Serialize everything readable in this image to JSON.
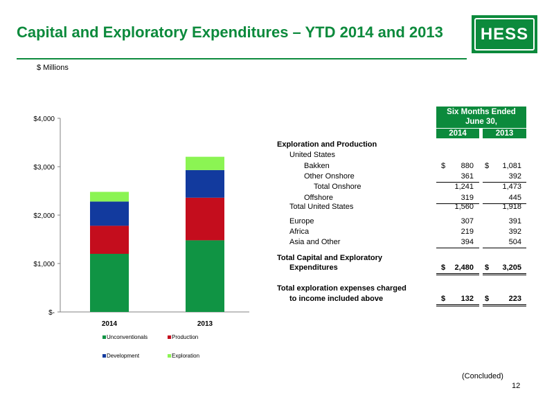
{
  "header": {
    "title": "Capital and Exploratory Expenditures – YTD 2014 and 2013",
    "logo_text": "HESS",
    "subtitle": "$ Millions"
  },
  "colors": {
    "brand_green": "#0c8a3c",
    "unconventionals": "#109444",
    "production": "#c40d1d",
    "development": "#123a9e",
    "exploration": "#8bf453"
  },
  "chart_data": {
    "type": "bar",
    "stacked": true,
    "categories": [
      "2014",
      "2013"
    ],
    "series": [
      {
        "name": "Unconventionals",
        "values": [
          1200,
          1480
        ]
      },
      {
        "name": "Production",
        "values": [
          580,
          880
        ]
      },
      {
        "name": "Development",
        "values": [
          500,
          570
        ]
      },
      {
        "name": "Exploration",
        "values": [
          200,
          275
        ]
      }
    ],
    "ylim": [
      0,
      4000
    ],
    "yticks": [
      0,
      1000,
      2000,
      3000,
      4000
    ],
    "ytick_labels": [
      "$-",
      "$1,000",
      "$2,000",
      "$3,000",
      "$4,000"
    ],
    "legend_position": "bottom",
    "grid": false
  },
  "table": {
    "period_header_line1": "Six Months Ended",
    "period_header_line2": "June 30,",
    "year1": "2014",
    "year2": "2013",
    "rows": [
      {
        "label": "Exploration and Production",
        "indent": 0,
        "bold": true
      },
      {
        "label": "United States",
        "indent": 1
      },
      {
        "label": "Bakken",
        "indent": 2,
        "cur1": "$",
        "v1": "880",
        "cur2": "$",
        "v2": "1,081"
      },
      {
        "label": "Other Onshore",
        "indent": 2,
        "v1": "361",
        "v2": "392",
        "underline": true
      },
      {
        "label": "Total Onshore",
        "indent": 3,
        "v1": "1,241",
        "v2": "1,473"
      },
      {
        "label": "Offshore",
        "indent": 2,
        "v1": "319",
        "v2": "445",
        "underline": true
      },
      {
        "label": "Total United States",
        "indent": 1,
        "v1": "1,560",
        "v2": "1,918"
      },
      {
        "label": "Europe",
        "indent": 1,
        "v1": "307",
        "v2": "391"
      },
      {
        "label": "Africa",
        "indent": 1,
        "v1": "219",
        "v2": "392"
      },
      {
        "label": "Asia and Other",
        "indent": 1,
        "v1": "394",
        "v2": "504",
        "underline": true
      },
      {
        "label": "Total Capital and Exploratory",
        "indent": 0,
        "bold": true
      },
      {
        "label": "Expenditures",
        "indent": 1,
        "bold": true,
        "cur1": "$",
        "v1": "2,480",
        "cur2": "$",
        "v2": "3,205",
        "double": true
      },
      {
        "label": "Total exploration expenses charged",
        "indent": 0,
        "bold": true
      },
      {
        "label": "to income included above",
        "indent": 1,
        "bold": true,
        "cur1": "$",
        "v1": "132",
        "cur2": "$",
        "v2": "223",
        "double": true
      }
    ]
  },
  "footer": {
    "concluded": "(Concluded)",
    "page_number": "12"
  }
}
